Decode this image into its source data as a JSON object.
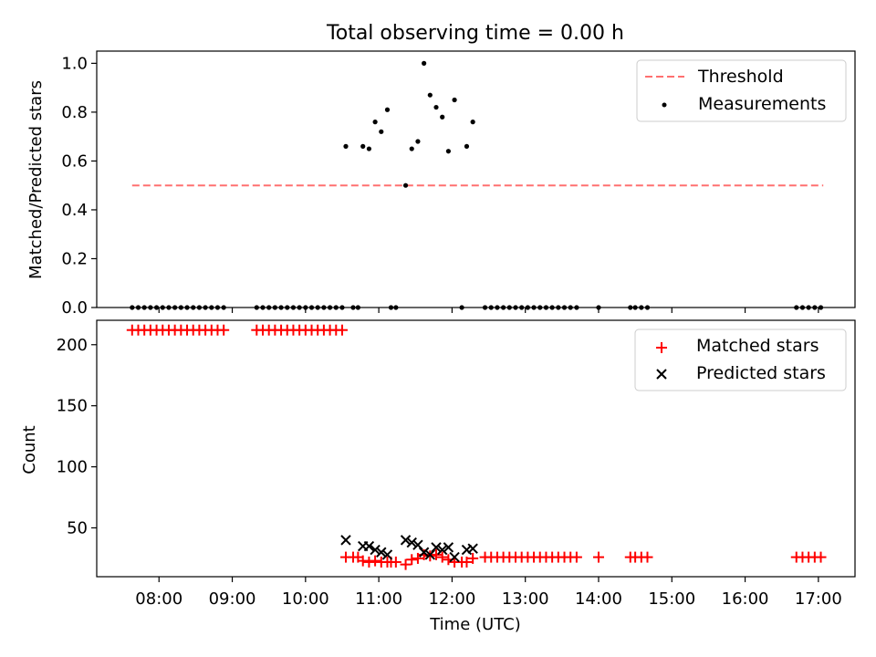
{
  "figure_title": "Total observing time = 0.00 h",
  "colors": {
    "threshold": "#ff7070",
    "measurements": "#000000",
    "matched": "#ff0000",
    "predicted": "#000000"
  },
  "chart_data": [
    {
      "type": "scatter",
      "title": "Total observing time = 0.00 h",
      "xlabel": "",
      "ylabel": "Matched/Predicted stars",
      "xlim_hours": [
        7.15,
        17.5
      ],
      "ylim": [
        0,
        1.05
      ],
      "yticks": [
        0.0,
        0.2,
        0.4,
        0.6,
        0.8,
        1.0
      ],
      "ytick_labels": [
        "0.0",
        "0.2",
        "0.4",
        "0.6",
        "0.8",
        "1.0"
      ],
      "legend": {
        "position": "top-right",
        "entries": [
          "Threshold",
          "Measurements"
        ]
      },
      "grid": false,
      "threshold": {
        "name": "Threshold",
        "y": 0.5,
        "x_start": "07:38",
        "x_end": "17:04"
      },
      "series": [
        {
          "name": "Measurements",
          "points": [
            [
              "07:38",
              0
            ],
            [
              "07:43",
              0
            ],
            [
              "07:48",
              0
            ],
            [
              "07:53",
              0
            ],
            [
              "07:58",
              0
            ],
            [
              "08:03",
              0
            ],
            [
              "08:08",
              0
            ],
            [
              "08:13",
              0
            ],
            [
              "08:18",
              0
            ],
            [
              "08:23",
              0
            ],
            [
              "08:28",
              0
            ],
            [
              "08:33",
              0
            ],
            [
              "08:38",
              0
            ],
            [
              "08:43",
              0
            ],
            [
              "08:48",
              0
            ],
            [
              "08:53",
              0
            ],
            [
              "09:20",
              0
            ],
            [
              "09:25",
              0
            ],
            [
              "09:30",
              0
            ],
            [
              "09:35",
              0
            ],
            [
              "09:40",
              0
            ],
            [
              "09:45",
              0
            ],
            [
              "09:50",
              0
            ],
            [
              "09:55",
              0
            ],
            [
              "10:00",
              0
            ],
            [
              "10:05",
              0
            ],
            [
              "10:10",
              0
            ],
            [
              "10:15",
              0
            ],
            [
              "10:20",
              0
            ],
            [
              "10:25",
              0
            ],
            [
              "10:30",
              0
            ],
            [
              "10:39",
              0
            ],
            [
              "10:43",
              0
            ],
            [
              "11:10",
              0
            ],
            [
              "11:14",
              0
            ],
            [
              "12:08",
              0
            ],
            [
              "12:27",
              0
            ],
            [
              "12:32",
              0
            ],
            [
              "12:37",
              0
            ],
            [
              "12:42",
              0
            ],
            [
              "12:47",
              0
            ],
            [
              "12:52",
              0
            ],
            [
              "12:57",
              0
            ],
            [
              "13:02",
              0
            ],
            [
              "13:07",
              0
            ],
            [
              "13:12",
              0
            ],
            [
              "13:17",
              0
            ],
            [
              "13:22",
              0
            ],
            [
              "13:27",
              0
            ],
            [
              "13:32",
              0
            ],
            [
              "13:37",
              0
            ],
            [
              "13:42",
              0
            ],
            [
              "14:00",
              0
            ],
            [
              "14:26",
              0
            ],
            [
              "14:30",
              0
            ],
            [
              "14:35",
              0
            ],
            [
              "14:40",
              0
            ],
            [
              "16:42",
              0
            ],
            [
              "16:47",
              0
            ],
            [
              "16:52",
              0
            ],
            [
              "16:57",
              0
            ],
            [
              "17:02",
              0
            ],
            [
              "10:33",
              0.66
            ],
            [
              "10:47",
              0.66
            ],
            [
              "10:52",
              0.65
            ],
            [
              "10:57",
              0.76
            ],
            [
              "11:02",
              0.72
            ],
            [
              "11:07",
              0.81
            ],
            [
              "11:22",
              0.5
            ],
            [
              "11:27",
              0.65
            ],
            [
              "11:32",
              0.68
            ],
            [
              "11:37",
              1.0
            ],
            [
              "11:42",
              0.87
            ],
            [
              "11:47",
              0.82
            ],
            [
              "11:52",
              0.78
            ],
            [
              "11:57",
              0.64
            ],
            [
              "12:02",
              0.85
            ],
            [
              "12:12",
              0.66
            ],
            [
              "12:17",
              0.76
            ]
          ]
        }
      ]
    },
    {
      "type": "scatter",
      "title": "",
      "xlabel": "Time (UTC)",
      "ylabel": "Count",
      "xlim_hours": [
        7.15,
        17.5
      ],
      "ylim": [
        10,
        220
      ],
      "yticks": [
        50,
        100,
        150,
        200
      ],
      "ytick_labels": [
        "50",
        "100",
        "150",
        "200"
      ],
      "xticks": [
        "08:00",
        "09:00",
        "10:00",
        "11:00",
        "12:00",
        "13:00",
        "14:00",
        "15:00",
        "16:00",
        "17:00"
      ],
      "legend": {
        "position": "top-right",
        "entries": [
          "Matched stars",
          "Predicted stars"
        ]
      },
      "grid": false,
      "series": [
        {
          "name": "Matched stars",
          "points": [
            [
              "07:38",
              212
            ],
            [
              "07:43",
              212
            ],
            [
              "07:48",
              212
            ],
            [
              "07:53",
              212
            ],
            [
              "07:58",
              212
            ],
            [
              "08:03",
              212
            ],
            [
              "08:08",
              212
            ],
            [
              "08:13",
              212
            ],
            [
              "08:18",
              212
            ],
            [
              "08:23",
              212
            ],
            [
              "08:28",
              212
            ],
            [
              "08:33",
              212
            ],
            [
              "08:38",
              212
            ],
            [
              "08:43",
              212
            ],
            [
              "08:48",
              212
            ],
            [
              "08:53",
              212
            ],
            [
              "09:20",
              212
            ],
            [
              "09:25",
              212
            ],
            [
              "09:30",
              212
            ],
            [
              "09:35",
              212
            ],
            [
              "09:40",
              212
            ],
            [
              "09:45",
              212
            ],
            [
              "09:50",
              212
            ],
            [
              "09:55",
              212
            ],
            [
              "10:00",
              212
            ],
            [
              "10:05",
              212
            ],
            [
              "10:10",
              212
            ],
            [
              "10:15",
              212
            ],
            [
              "10:20",
              212
            ],
            [
              "10:25",
              212
            ],
            [
              "10:30",
              212
            ],
            [
              "10:33",
              26
            ],
            [
              "10:39",
              26
            ],
            [
              "10:43",
              26
            ],
            [
              "10:47",
              23
            ],
            [
              "10:52",
              22
            ],
            [
              "10:57",
              23
            ],
            [
              "11:02",
              22
            ],
            [
              "11:07",
              22
            ],
            [
              "11:10",
              22
            ],
            [
              "11:14",
              22
            ],
            [
              "11:22",
              20
            ],
            [
              "11:27",
              24
            ],
            [
              "11:32",
              25
            ],
            [
              "11:37",
              28
            ],
            [
              "11:42",
              27
            ],
            [
              "11:47",
              28
            ],
            [
              "11:52",
              26
            ],
            [
              "11:57",
              24
            ],
            [
              "12:02",
              22
            ],
            [
              "12:08",
              22
            ],
            [
              "12:12",
              22
            ],
            [
              "12:17",
              25
            ],
            [
              "12:27",
              26
            ],
            [
              "12:32",
              26
            ],
            [
              "12:37",
              26
            ],
            [
              "12:42",
              26
            ],
            [
              "12:47",
              26
            ],
            [
              "12:52",
              26
            ],
            [
              "12:57",
              26
            ],
            [
              "13:02",
              26
            ],
            [
              "13:07",
              26
            ],
            [
              "13:12",
              26
            ],
            [
              "13:17",
              26
            ],
            [
              "13:22",
              26
            ],
            [
              "13:27",
              26
            ],
            [
              "13:32",
              26
            ],
            [
              "13:37",
              26
            ],
            [
              "13:42",
              26
            ],
            [
              "14:00",
              26
            ],
            [
              "14:26",
              26
            ],
            [
              "14:30",
              26
            ],
            [
              "14:35",
              26
            ],
            [
              "14:40",
              26
            ],
            [
              "16:42",
              26
            ],
            [
              "16:47",
              26
            ],
            [
              "16:52",
              26
            ],
            [
              "16:57",
              26
            ],
            [
              "17:02",
              26
            ]
          ]
        },
        {
          "name": "Predicted stars",
          "points": [
            [
              "10:33",
              40
            ],
            [
              "10:47",
              35
            ],
            [
              "10:52",
              35
            ],
            [
              "10:57",
              32
            ],
            [
              "11:02",
              30
            ],
            [
              "11:07",
              28
            ],
            [
              "11:22",
              40
            ],
            [
              "11:27",
              38
            ],
            [
              "11:32",
              36
            ],
            [
              "11:37",
              30
            ],
            [
              "11:42",
              28
            ],
            [
              "11:47",
              34
            ],
            [
              "11:52",
              32
            ],
            [
              "11:57",
              34
            ],
            [
              "12:02",
              26
            ],
            [
              "12:12",
              32
            ],
            [
              "12:17",
              33
            ]
          ]
        }
      ]
    }
  ]
}
